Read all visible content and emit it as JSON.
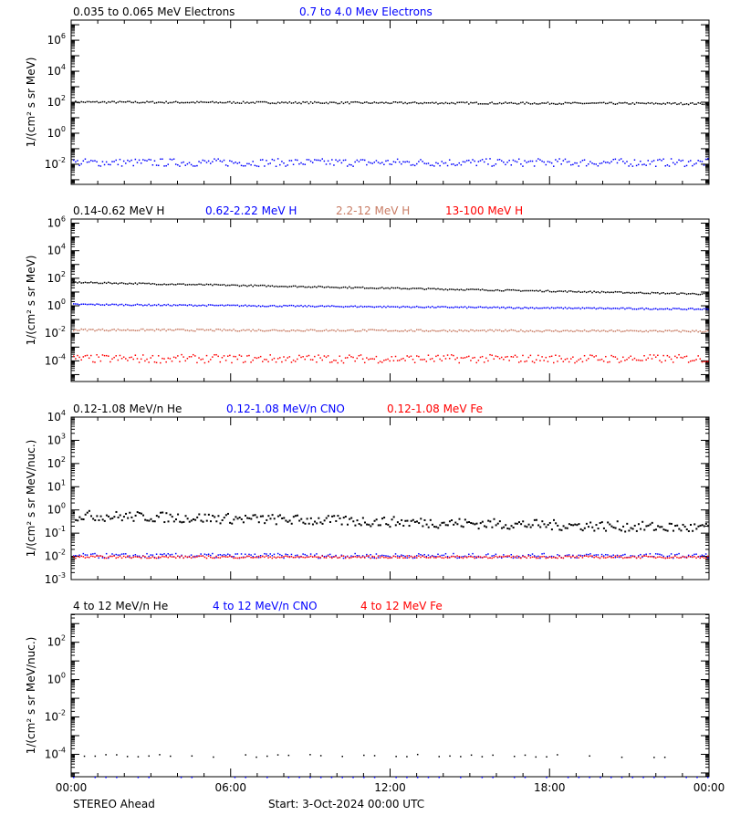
{
  "colors": {
    "black": "#000000",
    "blue": "#0000ff",
    "tan": "#c87c64",
    "red": "#ff0000"
  },
  "x_tick_labels": [
    "00:00",
    "06:00",
    "12:00",
    "18:00",
    "00:00"
  ],
  "footer": {
    "left": "STEREO Ahead",
    "start": "Start:  3-Oct-2024 00:00 UTC"
  },
  "chart_data": [
    {
      "type": "scatter",
      "ylabel": "1/(cm² s sr MeV)",
      "ylim_log10": [
        -3.3,
        7.3
      ],
      "ytick_labels": [
        {
          "exp": 6,
          "base": "10",
          "sup": "6"
        },
        {
          "exp": 4,
          "base": "10",
          "sup": "4"
        },
        {
          "exp": 2,
          "base": "10",
          "sup": "2"
        },
        {
          "exp": 0,
          "base": "10",
          "sup": "0"
        },
        {
          "exp": -2,
          "base": "10",
          "sup": "-2"
        }
      ],
      "series": [
        {
          "name": "0.035 to 0.065 MeV Electrons",
          "color": "black",
          "log10_level": 2.05,
          "noise": 0.06,
          "trend": -0.1
        },
        {
          "name": "0.7 to 4.0 Mev Electrons",
          "color": "blue",
          "log10_level": -1.85,
          "noise": 0.25,
          "trend": 0
        }
      ]
    },
    {
      "type": "scatter",
      "ylabel": "1/(cm² s sr MeV)",
      "ylim_log10": [
        -5.5,
        6.3
      ],
      "ytick_labels": [
        {
          "exp": 6,
          "base": "10",
          "sup": "6"
        },
        {
          "exp": 4,
          "base": "10",
          "sup": "4"
        },
        {
          "exp": 2,
          "base": "10",
          "sup": "2"
        },
        {
          "exp": 0,
          "base": "10",
          "sup": "0"
        },
        {
          "exp": -2,
          "base": "10",
          "sup": "-2"
        },
        {
          "exp": -4,
          "base": "10",
          "sup": "-4"
        }
      ],
      "series": [
        {
          "name": "0.14-0.62 MeV H",
          "color": "black",
          "log10_level": 1.75,
          "noise": 0.05,
          "trend": -0.85
        },
        {
          "name": "0.62-2.22 MeV H",
          "color": "blue",
          "log10_level": 0.15,
          "noise": 0.05,
          "trend": -0.35
        },
        {
          "name": "2.2-12 MeV H",
          "color": "tan",
          "log10_level": -1.7,
          "noise": 0.07,
          "trend": -0.1
        },
        {
          "name": "13-100 MeV H",
          "color": "red",
          "log10_level": -3.8,
          "noise": 0.3,
          "trend": 0
        }
      ]
    },
    {
      "type": "scatter",
      "ylabel": "1/(cm² s sr MeV/nuc.)",
      "ylim_log10": [
        -3.0,
        4.0
      ],
      "ytick_labels": [
        {
          "exp": 4,
          "base": "10",
          "sup": "4"
        },
        {
          "exp": 3,
          "base": "10",
          "sup": "3"
        },
        {
          "exp": 2,
          "base": "10",
          "sup": "2"
        },
        {
          "exp": 1,
          "base": "10",
          "sup": "1"
        },
        {
          "exp": 0,
          "base": "10",
          "sup": "0"
        },
        {
          "exp": -1,
          "base": "10",
          "sup": "-1"
        },
        {
          "exp": -2,
          "base": "10",
          "sup": "-2"
        },
        {
          "exp": -3,
          "base": "10",
          "sup": "-3"
        }
      ],
      "series": [
        {
          "name": "0.12-1.08 MeV/n He",
          "color": "black",
          "log10_level": -0.2,
          "noise": 0.22,
          "trend": -0.55
        },
        {
          "name": "0.12-1.08 MeV/n CNO",
          "color": "blue",
          "log10_level": -1.95,
          "noise": 0.1,
          "trend": 0
        },
        {
          "name": "0.12-1.08 MeV Fe",
          "color": "red",
          "log10_level": -2.0,
          "noise": 0.05,
          "trend": 0
        }
      ]
    },
    {
      "type": "scatter",
      "ylabel": "1/(cm² s sr MeV/nuc.)",
      "ylim_log10": [
        -5.2,
        3.5
      ],
      "ytick_labels": [
        {
          "exp": 2,
          "base": "10",
          "sup": "2"
        },
        {
          "exp": 0,
          "base": "10",
          "sup": "0"
        },
        {
          "exp": -2,
          "base": "10",
          "sup": "-2"
        },
        {
          "exp": -4,
          "base": "10",
          "sup": "-4"
        }
      ],
      "series": [
        {
          "name": "4 to 12 MeV/n He",
          "color": "black",
          "log10_level": -4.05,
          "noise": 0.08,
          "trend": 0
        },
        {
          "name": "4 to 12 MeV/n CNO",
          "color": "blue",
          "log10_level": -5.2,
          "noise": 0,
          "trend": 0
        },
        {
          "name": "4 to 12 MeV Fe",
          "color": "red",
          "log10_level": -5.3,
          "noise": 0,
          "trend": 0
        }
      ]
    }
  ]
}
